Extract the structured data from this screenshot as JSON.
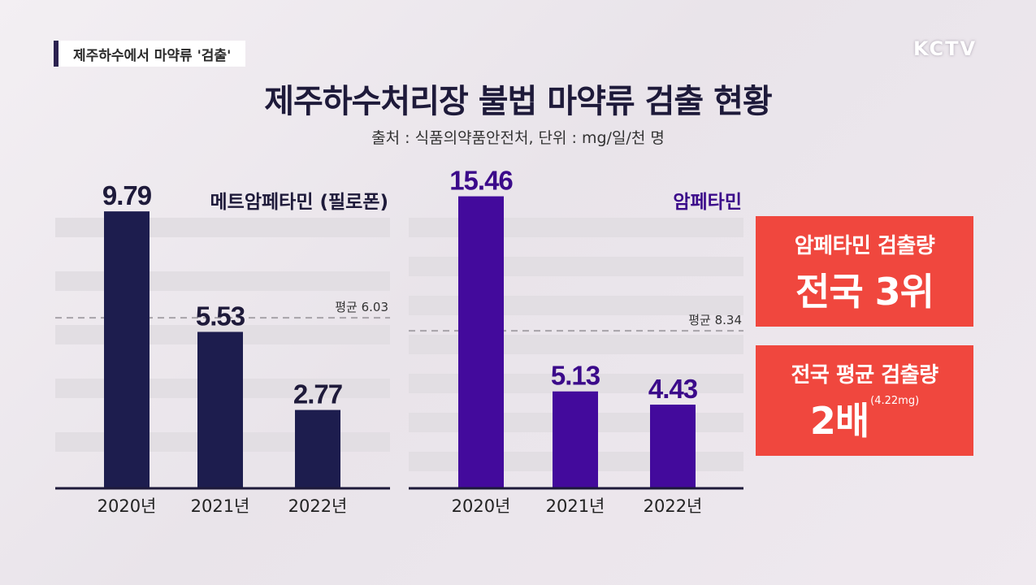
{
  "header": {
    "corner_label": "제주하수에서 마약류 '검출'",
    "logo": "KCTV",
    "title": "제주하수처리장 불법 마약류 검출 현황",
    "subtitle": "출처 : 식품의약품안전처, 단위 : mg/일/천 명"
  },
  "colors": {
    "meth_bar": "#1d1d4e",
    "amph_bar": "#430a9c",
    "amph_label": "#3b0a8a",
    "stripe": "#e2dee3",
    "callout_bg": "#f0473e"
  },
  "chart_data": [
    {
      "type": "bar",
      "title": "메트암페타민 (필로폰)",
      "categories": [
        "2020년",
        "2021년",
        "2022년"
      ],
      "values": [
        9.79,
        5.53,
        2.77
      ],
      "value_labels": [
        "9.79",
        "5.53",
        "2.77"
      ],
      "average": {
        "label": "평균 6.03",
        "value": 6.03
      },
      "ylim": [
        0,
        10.8
      ]
    },
    {
      "type": "bar",
      "title": "암페타민",
      "categories": [
        "2020년",
        "2021년",
        "2022년"
      ],
      "values": [
        15.46,
        5.13,
        4.43
      ],
      "value_labels": [
        "15.46",
        "5.13",
        "4.43"
      ],
      "average": {
        "label": "평균 8.34",
        "value": 8.34
      },
      "ylim": [
        0,
        15.4
      ]
    }
  ],
  "callouts": {
    "rank": {
      "line1": "암페타민 검출량",
      "line2": "전국 3위"
    },
    "double": {
      "line1": "전국 평균 검출량",
      "line2": "2배",
      "note": "(4.22mg)"
    }
  }
}
